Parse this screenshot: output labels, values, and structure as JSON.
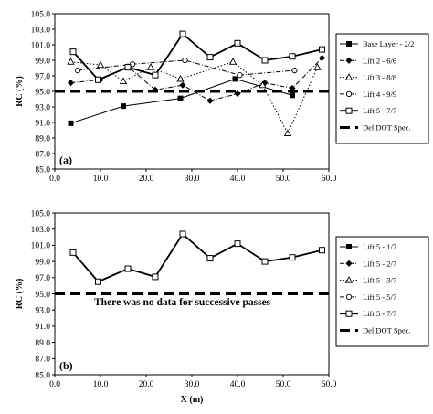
{
  "figure_note": "There was no data for successive passes",
  "chart_data": [
    {
      "type": "line",
      "panel_label": "(a)",
      "ylabel": "RC (%)",
      "xlabel": "",
      "xlim": [
        0,
        60
      ],
      "ylim": [
        85,
        105
      ],
      "xticks": [
        "0.0",
        "10.0",
        "20.0",
        "30.0",
        "40.0",
        "50.0",
        "60.0"
      ],
      "yticks": [
        "85.0",
        "87.0",
        "89.0",
        "91.0",
        "93.0",
        "95.0",
        "97.0",
        "99.0",
        "101.0",
        "103.0",
        "105.0"
      ],
      "grid": false,
      "legend_position": "right",
      "series": [
        {
          "name": "Base Layer - 2/2",
          "marker": "square-filled",
          "dash": "solid",
          "width": 1,
          "points": [
            [
              3.5,
              90.9
            ],
            [
              15,
              93.1
            ],
            [
              27.5,
              94.1
            ],
            [
              39.5,
              96.6
            ],
            [
              52,
              94.5
            ]
          ]
        },
        {
          "name": "Lift 2 - 6/6",
          "marker": "diamond-filled",
          "dash": "dashdot",
          "width": 1,
          "points": [
            [
              3.5,
              96.1
            ],
            [
              10,
              96.5
            ],
            [
              16,
              98.2
            ],
            [
              22,
              95.2
            ],
            [
              28,
              95.8
            ],
            [
              34,
              93.8
            ],
            [
              40,
              94.7
            ],
            [
              46,
              96.1
            ],
            [
              52,
              95.4
            ],
            [
              58.5,
              99.3
            ]
          ]
        },
        {
          "name": "Lift 3 - 8/8",
          "marker": "triangle-open",
          "dash": "dotted",
          "width": 1,
          "points": [
            [
              3.5,
              98.8
            ],
            [
              10,
              98.4
            ],
            [
              15,
              96.3
            ],
            [
              21,
              98.1
            ],
            [
              27.5,
              96.6
            ],
            [
              39,
              98.8
            ],
            [
              45.5,
              95.8
            ],
            [
              51,
              89.6
            ],
            [
              57.5,
              98.1
            ]
          ]
        },
        {
          "name": "Lift 4 - 9/9",
          "marker": "circle-open",
          "dash": "dashdot",
          "width": 1,
          "points": [
            [
              5,
              97.7
            ],
            [
              17,
              98.5
            ],
            [
              28.5,
              99.0
            ],
            [
              40.5,
              97.1
            ],
            [
              52.5,
              97.7
            ]
          ]
        },
        {
          "name": "Lift 5 - 7/7",
          "marker": "square-open",
          "dash": "solid",
          "width": 1.8,
          "points": [
            [
              4,
              100.1
            ],
            [
              9.5,
              96.5
            ],
            [
              16,
              98.1
            ],
            [
              22,
              97.1
            ],
            [
              28,
              102.4
            ],
            [
              34,
              99.4
            ],
            [
              40,
              101.2
            ],
            [
              46,
              99.0
            ],
            [
              52,
              99.5
            ],
            [
              58.5,
              100.4
            ]
          ]
        },
        {
          "name": "Del DOT Spec.",
          "marker": "none",
          "dash": "longdash",
          "width": 3,
          "points": [
            [
              0,
              95
            ],
            [
              60,
              95
            ]
          ]
        }
      ]
    },
    {
      "type": "line",
      "panel_label": "(b)",
      "ylabel": "RC (%)",
      "xlabel": "X (m)",
      "xlim": [
        0,
        60
      ],
      "ylim": [
        85,
        105
      ],
      "xticks": [
        "0.0",
        "10.0",
        "20.0",
        "30.0",
        "40.0",
        "50.0",
        "60.0"
      ],
      "yticks": [
        "85.0",
        "87.0",
        "89.0",
        "91.0",
        "93.0",
        "95.0",
        "97.0",
        "99.0",
        "101.0",
        "103.0",
        "105.0"
      ],
      "grid": false,
      "legend_position": "right",
      "series": [
        {
          "name": "Lift 5 - 1/7",
          "marker": "square-filled",
          "dash": "solid",
          "width": 1,
          "points": []
        },
        {
          "name": "Lift 5 - 2/7",
          "marker": "diamond-filled",
          "dash": "dashdot",
          "width": 1,
          "points": []
        },
        {
          "name": "Lift 5 - 3/7",
          "marker": "triangle-open",
          "dash": "dotted",
          "width": 1,
          "points": []
        },
        {
          "name": "Lift 5 - 5/7",
          "marker": "circle-open",
          "dash": "dashdot",
          "width": 1,
          "points": []
        },
        {
          "name": "Lift 5 - 7/7",
          "marker": "square-open",
          "dash": "solid",
          "width": 1.8,
          "points": [
            [
              4,
              100.1
            ],
            [
              9.5,
              96.5
            ],
            [
              16,
              98.1
            ],
            [
              22,
              97.1
            ],
            [
              28,
              102.4
            ],
            [
              34,
              99.4
            ],
            [
              40,
              101.2
            ],
            [
              46,
              99.0
            ],
            [
              52,
              99.5
            ],
            [
              58.5,
              100.4
            ]
          ]
        },
        {
          "name": "Del DOT Spec.",
          "marker": "none",
          "dash": "longdash",
          "width": 3,
          "points": [
            [
              0,
              95
            ],
            [
              60,
              95
            ]
          ]
        }
      ]
    }
  ]
}
